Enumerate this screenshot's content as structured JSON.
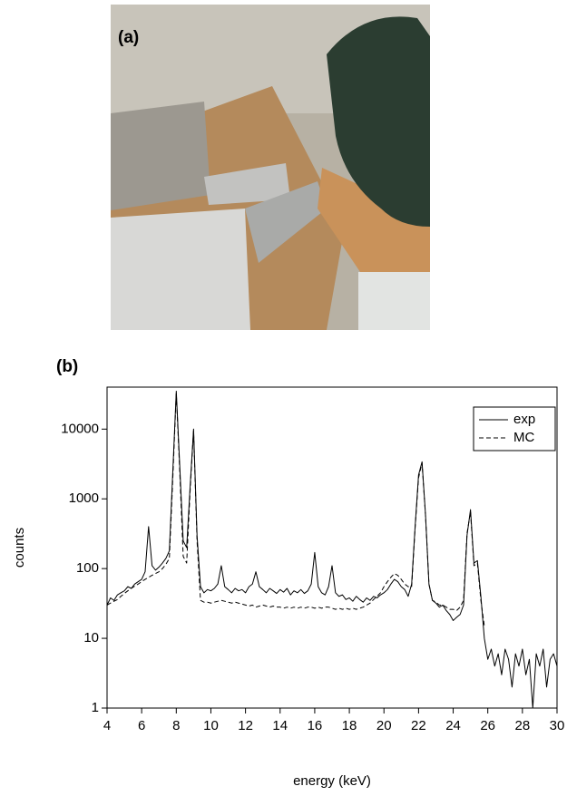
{
  "photo": {
    "label": "(a)"
  },
  "chart_data": {
    "type": "line",
    "panel_label": "(b)",
    "xlabel": "energy (keV)",
    "ylabel": "counts",
    "x": [
      4.0,
      4.2,
      4.4,
      4.6,
      4.8,
      5.0,
      5.2,
      5.4,
      5.6,
      5.8,
      6.0,
      6.2,
      6.4,
      6.6,
      6.8,
      7.0,
      7.2,
      7.4,
      7.6,
      7.8,
      8.0,
      8.2,
      8.4,
      8.6,
      8.8,
      9.0,
      9.2,
      9.4,
      9.6,
      9.8,
      10.0,
      10.2,
      10.4,
      10.6,
      10.8,
      11.0,
      11.2,
      11.4,
      11.6,
      11.8,
      12.0,
      12.2,
      12.4,
      12.6,
      12.8,
      13.0,
      13.2,
      13.4,
      13.6,
      13.8,
      14.0,
      14.2,
      14.4,
      14.6,
      14.8,
      15.0,
      15.2,
      15.4,
      15.6,
      15.8,
      16.0,
      16.2,
      16.4,
      16.6,
      16.8,
      17.0,
      17.2,
      17.4,
      17.6,
      17.8,
      18.0,
      18.2,
      18.4,
      18.6,
      18.8,
      19.0,
      19.2,
      19.4,
      19.6,
      19.8,
      20.0,
      20.2,
      20.4,
      20.6,
      20.8,
      21.0,
      21.2,
      21.4,
      21.6,
      21.8,
      22.0,
      22.2,
      22.4,
      22.6,
      22.8,
      23.0,
      23.2,
      23.4,
      23.6,
      23.8,
      24.0,
      24.2,
      24.4,
      24.6,
      24.8,
      25.0,
      25.2,
      25.4,
      25.6,
      25.8,
      26.0,
      26.2,
      26.4,
      26.6,
      26.8,
      27.0,
      27.2,
      27.4,
      27.6,
      27.8,
      28.0,
      28.2,
      28.4,
      28.6,
      28.8,
      29.0,
      29.2,
      29.4,
      29.6,
      29.8,
      30.0
    ],
    "series": [
      {
        "name": "exp",
        "color": "#000000",
        "linestyle": "solid",
        "values": [
          30,
          38,
          35,
          42,
          45,
          48,
          55,
          52,
          60,
          65,
          70,
          90,
          400,
          110,
          95,
          105,
          120,
          140,
          180,
          2500,
          35000,
          3000,
          250,
          200,
          1500,
          10000,
          300,
          55,
          45,
          50,
          48,
          52,
          60,
          110,
          55,
          50,
          45,
          52,
          48,
          50,
          45,
          55,
          60,
          90,
          55,
          50,
          45,
          52,
          48,
          44,
          50,
          46,
          52,
          42,
          48,
          45,
          50,
          44,
          48,
          60,
          170,
          55,
          45,
          42,
          55,
          110,
          45,
          40,
          42,
          36,
          38,
          34,
          40,
          36,
          33,
          38,
          35,
          40,
          38,
          42,
          45,
          50,
          60,
          70,
          65,
          55,
          50,
          40,
          60,
          400,
          2200,
          3400,
          600,
          60,
          35,
          32,
          28,
          30,
          25,
          22,
          18,
          20,
          22,
          30,
          300,
          700,
          120,
          130,
          40,
          10,
          5,
          7,
          4,
          6,
          3,
          7,
          5,
          2,
          6,
          4,
          7,
          3,
          5,
          1,
          6,
          4,
          7,
          2,
          5,
          6,
          4
        ]
      },
      {
        "name": "MC",
        "color": "#000000",
        "linestyle": "dashed",
        "values": [
          30,
          32,
          34,
          36,
          40,
          44,
          48,
          52,
          56,
          60,
          65,
          70,
          75,
          80,
          85,
          90,
          100,
          115,
          140,
          2000,
          33000,
          2500,
          150,
          120,
          1300,
          9500,
          250,
          35,
          33,
          33,
          32,
          33,
          34,
          35,
          34,
          33,
          32,
          33,
          32,
          31,
          30,
          29,
          30,
          28,
          29,
          30,
          29,
          28,
          29,
          28,
          28,
          27,
          28,
          27,
          28,
          27,
          28,
          27,
          28,
          28,
          27,
          28,
          27,
          28,
          28,
          27,
          26,
          27,
          26,
          27,
          26,
          27,
          26,
          27,
          28,
          30,
          32,
          36,
          40,
          45,
          55,
          65,
          75,
          85,
          80,
          70,
          60,
          55,
          55,
          380,
          2000,
          3300,
          580,
          60,
          35,
          33,
          30,
          30,
          28,
          26,
          26,
          25,
          28,
          35,
          320,
          650,
          110,
          120,
          35,
          15,
          null,
          null,
          null,
          null,
          null,
          null,
          null,
          null,
          null,
          null,
          null,
          null,
          null,
          null,
          null,
          null,
          null,
          null,
          null,
          null,
          null
        ]
      }
    ],
    "xlim": [
      4,
      30
    ],
    "xticks": [
      4,
      6,
      8,
      10,
      12,
      14,
      16,
      18,
      20,
      22,
      24,
      26,
      28,
      30
    ],
    "ylim": [
      1,
      40000
    ],
    "yticks": [
      1,
      10,
      100,
      1000,
      10000
    ],
    "log_y": true,
    "grid": false,
    "legend": "upper right"
  }
}
